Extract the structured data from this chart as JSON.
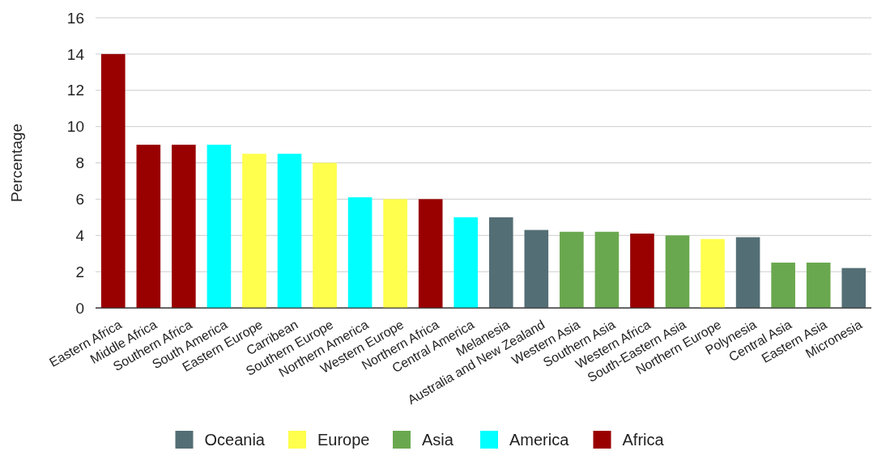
{
  "chart_data": {
    "type": "bar",
    "ylabel": "Percentage",
    "categories": [
      "Eastern Africa",
      "Middle Africa",
      "Southern Africa",
      "South America",
      "Eastern Europe",
      "Carribean",
      "Southern Europe",
      "Northern America",
      "Western Europe",
      "Northern Africa",
      "Central America",
      "Melanesia",
      "Australia and New Zealand",
      "Western Asia",
      "Southern Asia",
      "Western Africa",
      "South-Eastern Asia",
      "Northern Europe",
      "Polynesia",
      "Central Asia",
      "Eastern Asia",
      "Micronesia"
    ],
    "series": [
      {
        "name": "Oceania",
        "color": "#546e75",
        "values": [
          null,
          null,
          null,
          null,
          null,
          null,
          null,
          null,
          null,
          null,
          null,
          5,
          4.3,
          null,
          null,
          null,
          null,
          null,
          3.9,
          null,
          null,
          2.2
        ]
      },
      {
        "name": "Europe",
        "color": "#ffff4d",
        "values": [
          null,
          null,
          null,
          null,
          8.5,
          null,
          8,
          null,
          6,
          null,
          null,
          null,
          null,
          null,
          null,
          null,
          null,
          3.8,
          null,
          null,
          null,
          null
        ]
      },
      {
        "name": "Asia",
        "color": "#6aa84f",
        "values": [
          null,
          null,
          null,
          null,
          null,
          null,
          null,
          null,
          null,
          null,
          null,
          null,
          null,
          4.2,
          4.2,
          null,
          4,
          null,
          null,
          2.5,
          2.5,
          null
        ]
      },
      {
        "name": "America",
        "color": "#00ffff",
        "values": [
          null,
          null,
          null,
          9,
          null,
          8.5,
          null,
          6.1,
          null,
          null,
          5,
          null,
          null,
          null,
          null,
          null,
          null,
          null,
          null,
          null,
          null,
          null
        ]
      },
      {
        "name": "Africa",
        "color": "#990000",
        "values": [
          14,
          9,
          9,
          null,
          null,
          null,
          null,
          null,
          null,
          6,
          null,
          null,
          null,
          null,
          null,
          4.1,
          null,
          null,
          null,
          null,
          null,
          null
        ]
      }
    ],
    "ylim": [
      0,
      16
    ],
    "yticks": [
      0,
      2,
      4,
      6,
      8,
      10,
      12,
      14,
      16
    ],
    "grid": "y",
    "legend": "bottom"
  }
}
